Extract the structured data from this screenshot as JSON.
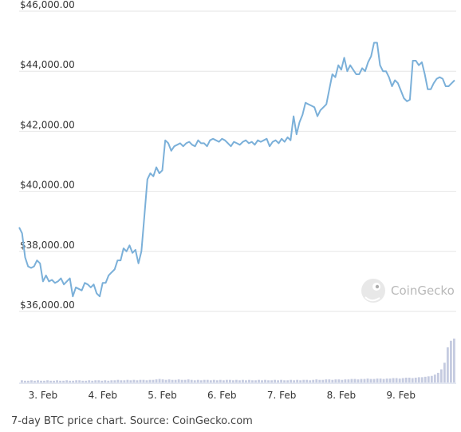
{
  "chart_data": {
    "type": "line",
    "title": "",
    "xlabel": "",
    "ylabel": "",
    "y_ticks": [
      "$46,000.00",
      "$44,000.00",
      "$42,000.00",
      "$40,000.00",
      "$38,000.00",
      "$36,000.00"
    ],
    "y_tick_values": [
      46000,
      44000,
      42000,
      40000,
      38000,
      36000
    ],
    "x_ticks": [
      "3. Feb",
      "4. Feb",
      "5. Feb",
      "6. Feb",
      "7. Feb",
      "8. Feb",
      "9. Feb"
    ],
    "ylim": [
      34000,
      47000
    ],
    "grid": true,
    "line_color": "#7bb0d9",
    "volume_color": "#c5cbe0",
    "series": [
      {
        "values": [
          [
            2.6,
            38800
          ],
          [
            2.65,
            38600
          ],
          [
            2.7,
            37800
          ],
          [
            2.75,
            37500
          ],
          [
            2.8,
            37450
          ],
          [
            2.85,
            37500
          ],
          [
            2.9,
            37700
          ],
          [
            2.95,
            37600
          ],
          [
            3.0,
            37000
          ],
          [
            3.05,
            37200
          ],
          [
            3.1,
            37000
          ],
          [
            3.15,
            37050
          ],
          [
            3.2,
            36950
          ],
          [
            3.25,
            37000
          ],
          [
            3.3,
            37100
          ],
          [
            3.35,
            36900
          ],
          [
            3.4,
            37000
          ],
          [
            3.45,
            37100
          ],
          [
            3.5,
            36500
          ],
          [
            3.55,
            36800
          ],
          [
            3.6,
            36750
          ],
          [
            3.65,
            36700
          ],
          [
            3.7,
            36950
          ],
          [
            3.75,
            36900
          ],
          [
            3.8,
            36800
          ],
          [
            3.85,
            36900
          ],
          [
            3.9,
            36600
          ],
          [
            3.95,
            36500
          ],
          [
            4.0,
            36950
          ],
          [
            4.05,
            36950
          ],
          [
            4.1,
            37200
          ],
          [
            4.15,
            37300
          ],
          [
            4.2,
            37400
          ],
          [
            4.25,
            37700
          ],
          [
            4.3,
            37700
          ],
          [
            4.35,
            38100
          ],
          [
            4.4,
            38000
          ],
          [
            4.45,
            38200
          ],
          [
            4.5,
            37950
          ],
          [
            4.55,
            38050
          ],
          [
            4.6,
            37600
          ],
          [
            4.65,
            38000
          ],
          [
            4.7,
            39200
          ],
          [
            4.75,
            40400
          ],
          [
            4.8,
            40600
          ],
          [
            4.85,
            40500
          ],
          [
            4.9,
            40800
          ],
          [
            4.95,
            40600
          ],
          [
            5.0,
            40700
          ],
          [
            5.05,
            41700
          ],
          [
            5.1,
            41600
          ],
          [
            5.15,
            41350
          ],
          [
            5.2,
            41500
          ],
          [
            5.25,
            41550
          ],
          [
            5.3,
            41600
          ],
          [
            5.35,
            41500
          ],
          [
            5.4,
            41600
          ],
          [
            5.45,
            41650
          ],
          [
            5.5,
            41550
          ],
          [
            5.55,
            41500
          ],
          [
            5.6,
            41700
          ],
          [
            5.65,
            41600
          ],
          [
            5.7,
            41600
          ],
          [
            5.75,
            41500
          ],
          [
            5.8,
            41700
          ],
          [
            5.85,
            41750
          ],
          [
            5.9,
            41700
          ],
          [
            5.95,
            41650
          ],
          [
            6.0,
            41750
          ],
          [
            6.05,
            41700
          ],
          [
            6.1,
            41600
          ],
          [
            6.15,
            41500
          ],
          [
            6.2,
            41650
          ],
          [
            6.25,
            41600
          ],
          [
            6.3,
            41550
          ],
          [
            6.35,
            41650
          ],
          [
            6.4,
            41700
          ],
          [
            6.45,
            41600
          ],
          [
            6.5,
            41650
          ],
          [
            6.55,
            41550
          ],
          [
            6.6,
            41700
          ],
          [
            6.65,
            41650
          ],
          [
            6.7,
            41700
          ],
          [
            6.75,
            41750
          ],
          [
            6.8,
            41500
          ],
          [
            6.85,
            41650
          ],
          [
            6.9,
            41700
          ],
          [
            6.95,
            41600
          ],
          [
            7.0,
            41750
          ],
          [
            7.05,
            41650
          ],
          [
            7.1,
            41800
          ],
          [
            7.15,
            41700
          ],
          [
            7.2,
            42500
          ],
          [
            7.25,
            41900
          ],
          [
            7.3,
            42300
          ],
          [
            7.35,
            42550
          ],
          [
            7.4,
            42950
          ],
          [
            7.45,
            42900
          ],
          [
            7.5,
            42850
          ],
          [
            7.55,
            42800
          ],
          [
            7.6,
            42500
          ],
          [
            7.65,
            42700
          ],
          [
            7.7,
            42800
          ],
          [
            7.75,
            42900
          ],
          [
            7.8,
            43400
          ],
          [
            7.85,
            43900
          ],
          [
            7.9,
            43800
          ],
          [
            7.95,
            44200
          ],
          [
            8.0,
            44050
          ],
          [
            8.05,
            44450
          ],
          [
            8.1,
            44000
          ],
          [
            8.15,
            44200
          ],
          [
            8.2,
            44050
          ],
          [
            8.25,
            43900
          ],
          [
            8.3,
            43900
          ],
          [
            8.35,
            44100
          ],
          [
            8.4,
            44000
          ],
          [
            8.45,
            44300
          ],
          [
            8.5,
            44500
          ],
          [
            8.55,
            44950
          ],
          [
            8.6,
            44950
          ],
          [
            8.65,
            44200
          ],
          [
            8.7,
            44000
          ],
          [
            8.75,
            44000
          ],
          [
            8.8,
            43800
          ],
          [
            8.85,
            43500
          ],
          [
            8.9,
            43700
          ],
          [
            8.95,
            43600
          ],
          [
            9.0,
            43350
          ],
          [
            9.05,
            43100
          ],
          [
            9.1,
            43000
          ],
          [
            9.15,
            43050
          ],
          [
            9.2,
            44350
          ],
          [
            9.25,
            44350
          ],
          [
            9.3,
            44200
          ],
          [
            9.35,
            44300
          ],
          [
            9.4,
            43900
          ],
          [
            9.45,
            43400
          ],
          [
            9.5,
            43400
          ],
          [
            9.55,
            43600
          ],
          [
            9.6,
            43750
          ],
          [
            9.65,
            43800
          ],
          [
            9.7,
            43750
          ],
          [
            9.75,
            43500
          ],
          [
            9.8,
            43500
          ],
          [
            9.85,
            43600
          ],
          [
            9.9,
            43700
          ]
        ]
      }
    ],
    "volume_relative": [
      0.05,
      0.04,
      0.04,
      0.05,
      0.04,
      0.05,
      0.04,
      0.04,
      0.05,
      0.04,
      0.04,
      0.05,
      0.04,
      0.04,
      0.05,
      0.04,
      0.04,
      0.05,
      0.05,
      0.04,
      0.04,
      0.05,
      0.04,
      0.05,
      0.05,
      0.04,
      0.05,
      0.04,
      0.05,
      0.05,
      0.06,
      0.05,
      0.05,
      0.06,
      0.05,
      0.06,
      0.05,
      0.06,
      0.06,
      0.05,
      0.06,
      0.06,
      0.07,
      0.08,
      0.07,
      0.06,
      0.07,
      0.06,
      0.06,
      0.07,
      0.06,
      0.06,
      0.07,
      0.06,
      0.05,
      0.06,
      0.05,
      0.06,
      0.06,
      0.05,
      0.06,
      0.05,
      0.06,
      0.05,
      0.06,
      0.06,
      0.05,
      0.06,
      0.05,
      0.06,
      0.05,
      0.06,
      0.05,
      0.05,
      0.06,
      0.05,
      0.06,
      0.05,
      0.05,
      0.06,
      0.05,
      0.06,
      0.05,
      0.05,
      0.06,
      0.05,
      0.06,
      0.05,
      0.06,
      0.06,
      0.05,
      0.06,
      0.07,
      0.06,
      0.06,
      0.07,
      0.07,
      0.06,
      0.07,
      0.07,
      0.06,
      0.07,
      0.07,
      0.08,
      0.08,
      0.07,
      0.08,
      0.08,
      0.09,
      0.08,
      0.08,
      0.09,
      0.09,
      0.08,
      0.09,
      0.09,
      0.1,
      0.1,
      0.09,
      0.1,
      0.11,
      0.11,
      0.1,
      0.11,
      0.12,
      0.12,
      0.13,
      0.14,
      0.15,
      0.18,
      0.22,
      0.3,
      0.45,
      0.8,
      0.95,
      1.0
    ]
  },
  "watermark": {
    "text": "CoinGecko",
    "icon": "gecko-logo-icon"
  },
  "caption": "7-day BTC price chart. Source: CoinGecko.com"
}
